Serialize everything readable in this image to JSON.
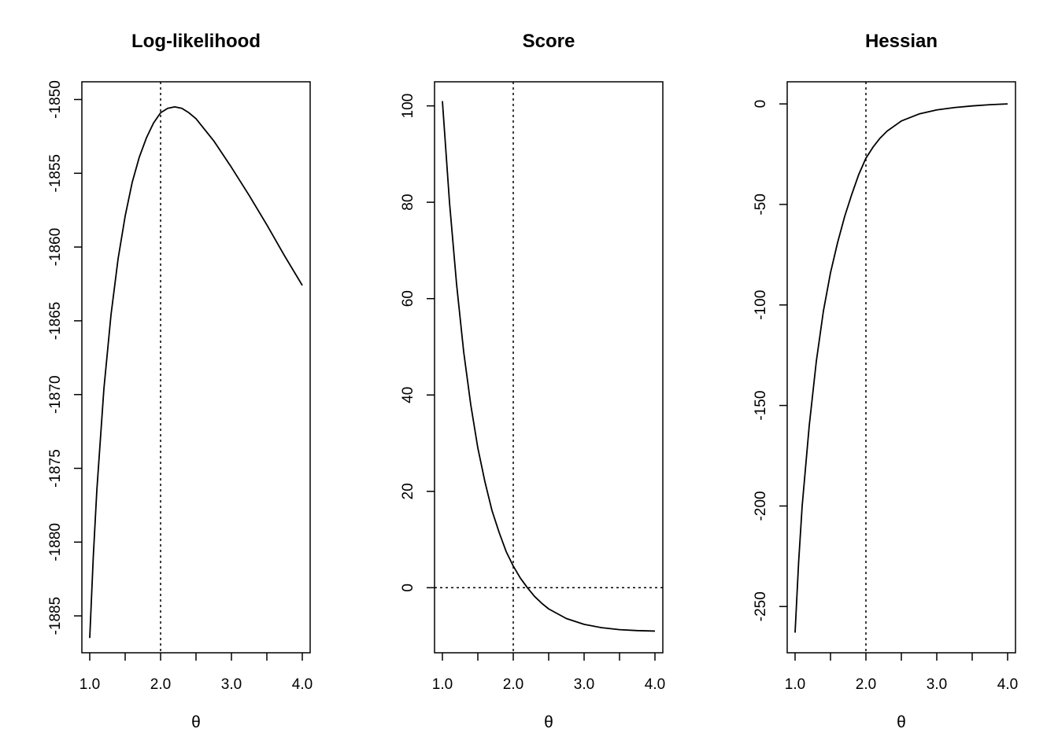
{
  "chart_data": [
    {
      "type": "line",
      "title": "Log-likelihood",
      "xlabel": "θ",
      "ylabel": "",
      "xlim": [
        1.0,
        4.0
      ],
      "ylim": [
        -1887.5,
        -1848.8
      ],
      "xticks": [
        1.0,
        1.5,
        2.0,
        2.5,
        3.0,
        3.5,
        4.0
      ],
      "xtick_labels": [
        "1.0",
        "",
        "2.0",
        "",
        "3.0",
        "",
        "4.0"
      ],
      "yticks": [
        -1885,
        -1880,
        -1875,
        -1870,
        -1865,
        -1860,
        -1855,
        -1850
      ],
      "ytick_labels": [
        "-1885",
        "-1880",
        "-1875",
        "-1870",
        "-1865",
        "-1860",
        "-1855",
        "-1850"
      ],
      "ref_lines": [
        {
          "axis": "x",
          "value": 2.0,
          "style": "dotted"
        }
      ],
      "grid": false,
      "series": [
        {
          "x": [
            1.0,
            1.05,
            1.1,
            1.2,
            1.3,
            1.4,
            1.5,
            1.6,
            1.7,
            1.8,
            1.9,
            2.0,
            2.1,
            2.2,
            2.3,
            2.4,
            2.5,
            2.75,
            3.0,
            3.25,
            3.5,
            3.75,
            4.0
          ],
          "y": [
            -1886.5,
            -1881.0,
            -1876.5,
            -1869.6,
            -1864.6,
            -1860.8,
            -1857.9,
            -1855.6,
            -1853.9,
            -1852.6,
            -1851.6,
            -1850.9,
            -1850.6,
            -1850.5,
            -1850.6,
            -1850.9,
            -1851.3,
            -1852.8,
            -1854.6,
            -1856.5,
            -1858.5,
            -1860.6,
            -1862.6
          ]
        }
      ]
    },
    {
      "type": "line",
      "title": "Score",
      "xlabel": "θ",
      "ylabel": "",
      "xlim": [
        1.0,
        4.0
      ],
      "ylim": [
        -13.5,
        105.0
      ],
      "xticks": [
        1.0,
        1.5,
        2.0,
        2.5,
        3.0,
        3.5,
        4.0
      ],
      "xtick_labels": [
        "1.0",
        "",
        "2.0",
        "",
        "3.0",
        "",
        "4.0"
      ],
      "yticks": [
        0,
        20,
        40,
        60,
        80,
        100
      ],
      "ytick_labels": [
        "0",
        "20",
        "40",
        "60",
        "80",
        "100"
      ],
      "ref_lines": [
        {
          "axis": "x",
          "value": 2.0,
          "style": "dotted"
        },
        {
          "axis": "y",
          "value": 0,
          "style": "dotted"
        }
      ],
      "grid": false,
      "series": [
        {
          "x": [
            1.0,
            1.1,
            1.2,
            1.3,
            1.4,
            1.5,
            1.6,
            1.7,
            1.8,
            1.9,
            2.0,
            2.1,
            2.2,
            2.3,
            2.4,
            2.5,
            2.75,
            3.0,
            3.25,
            3.5,
            3.75,
            4.0
          ],
          "y": [
            101.0,
            80.0,
            63.0,
            49.0,
            38.0,
            29.0,
            22.0,
            16.0,
            11.5,
            7.5,
            4.5,
            2.0,
            0.0,
            -1.8,
            -3.2,
            -4.4,
            -6.4,
            -7.6,
            -8.3,
            -8.7,
            -8.9,
            -9.0
          ]
        }
      ]
    },
    {
      "type": "line",
      "title": "Hessian",
      "xlabel": "θ",
      "ylabel": "",
      "xlim": [
        1.0,
        4.0
      ],
      "ylim": [
        -273.0,
        11.0
      ],
      "xticks": [
        1.0,
        1.5,
        2.0,
        2.5,
        3.0,
        3.5,
        4.0
      ],
      "xtick_labels": [
        "1.0",
        "",
        "2.0",
        "",
        "3.0",
        "",
        "4.0"
      ],
      "yticks": [
        -250,
        -200,
        -150,
        -100,
        -50,
        0
      ],
      "ytick_labels": [
        "-250",
        "-200",
        "-150",
        "-100",
        "-50",
        "0"
      ],
      "ref_lines": [
        {
          "axis": "x",
          "value": 2.0,
          "style": "dotted"
        }
      ],
      "grid": false,
      "series": [
        {
          "x": [
            1.0,
            1.05,
            1.1,
            1.2,
            1.3,
            1.4,
            1.5,
            1.6,
            1.7,
            1.8,
            1.9,
            2.0,
            2.1,
            2.2,
            2.3,
            2.5,
            2.75,
            3.0,
            3.25,
            3.5,
            3.75,
            4.0
          ],
          "y": [
            -263.0,
            -228.0,
            -200.0,
            -160.0,
            -128.0,
            -103.0,
            -84.0,
            -69.0,
            -56.0,
            -45.0,
            -35.0,
            -27.0,
            -21.5,
            -17.0,
            -13.5,
            -8.5,
            -5.0,
            -3.0,
            -1.8,
            -1.0,
            -0.4,
            0.0
          ]
        }
      ]
    }
  ]
}
